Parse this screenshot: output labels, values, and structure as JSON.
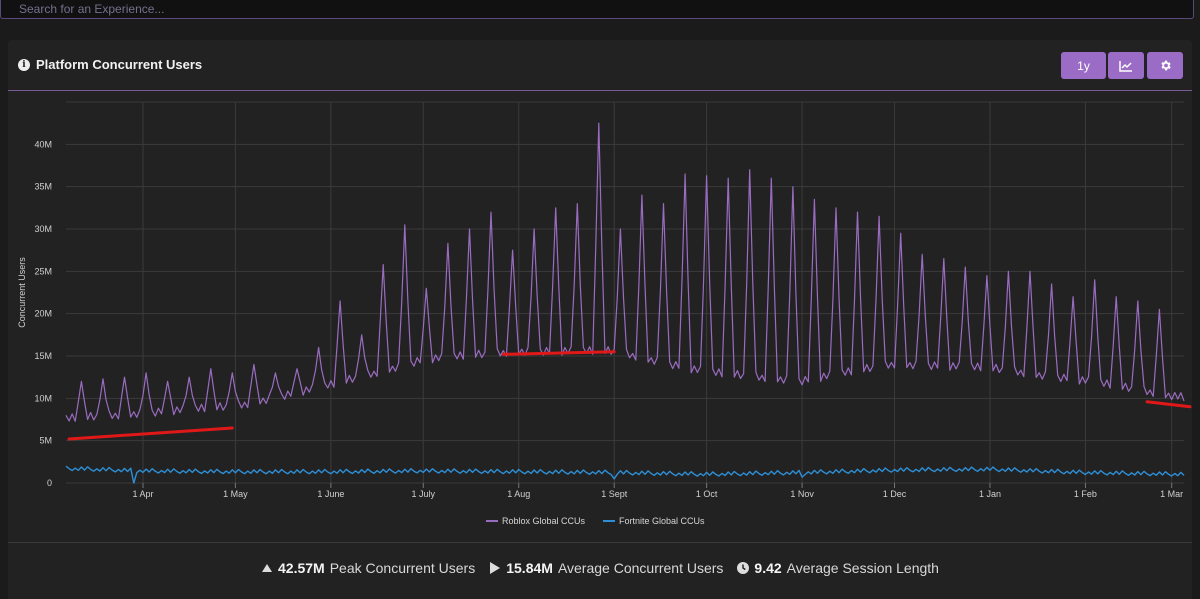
{
  "search": {
    "placeholder": "Search for an Experience..."
  },
  "panel": {
    "title": "Platform Concurrent Users",
    "range_button": "1y",
    "chart_button_icon": "line-chart-icon",
    "settings_button_icon": "gear-icon"
  },
  "colors": {
    "roblox": "#9a6cc0",
    "fortnite": "#2e8fd6",
    "annotation": "#e01818",
    "accent": "#9b6cc6"
  },
  "chart_data": {
    "type": "line",
    "title": "",
    "xlabel": "",
    "ylabel": "Concurrent Users",
    "ylim": [
      0,
      45
    ],
    "y_unit": "M",
    "y_ticks": [
      0,
      5,
      10,
      15,
      20,
      25,
      30,
      35,
      40
    ],
    "y_tick_labels": [
      "0",
      "5M",
      "10M",
      "15M",
      "20M",
      "25M",
      "30M",
      "35M",
      "40M"
    ],
    "x_range": [
      "2022-03-07",
      "2023-03-05"
    ],
    "x_ticks": [
      {
        "date": "2022-04-01",
        "label": "1 Apr"
      },
      {
        "date": "2022-05-01",
        "label": "1 May"
      },
      {
        "date": "2022-06-01",
        "label": "1 June"
      },
      {
        "date": "2022-07-01",
        "label": "1 July"
      },
      {
        "date": "2022-08-01",
        "label": "1 Aug"
      },
      {
        "date": "2022-09-01",
        "label": "1 Sept"
      },
      {
        "date": "2022-10-01",
        "label": "1 Oct"
      },
      {
        "date": "2022-11-01",
        "label": "1 Nov"
      },
      {
        "date": "2022-12-01",
        "label": "1 Dec"
      },
      {
        "date": "2023-01-01",
        "label": "1 Jan"
      },
      {
        "date": "2023-02-01",
        "label": "1 Feb"
      },
      {
        "date": "2023-03-01",
        "label": "1 Mar"
      }
    ],
    "grid": true,
    "legend_position": "bottom-center",
    "series": [
      {
        "name": "Roblox Global CCUs",
        "baseline_points": [
          [
            "2022-03-07",
            7.5
          ],
          [
            "2022-04-01",
            8.2
          ],
          [
            "2022-05-01",
            9.0
          ],
          [
            "2022-06-01",
            11.5
          ],
          [
            "2022-07-01",
            14.5
          ],
          [
            "2022-08-01",
            15.5
          ],
          [
            "2022-09-01",
            15.5
          ],
          [
            "2022-10-01",
            13.0
          ],
          [
            "2022-11-01",
            12.0
          ],
          [
            "2022-12-01",
            14.0
          ],
          [
            "2023-01-01",
            13.5
          ],
          [
            "2023-02-01",
            12.0
          ],
          [
            "2023-03-05",
            10.0
          ]
        ],
        "weekend_peaks": [
          [
            "2022-03-12",
            12.0
          ],
          [
            "2022-03-19",
            12.3
          ],
          [
            "2022-03-26",
            12.5
          ],
          [
            "2022-04-02",
            13.0
          ],
          [
            "2022-04-09",
            12.0
          ],
          [
            "2022-04-16",
            12.5
          ],
          [
            "2022-04-23",
            13.5
          ],
          [
            "2022-04-30",
            13.0
          ],
          [
            "2022-05-07",
            14.0
          ],
          [
            "2022-05-14",
            13.0
          ],
          [
            "2022-05-21",
            13.5
          ],
          [
            "2022-05-28",
            16.0
          ],
          [
            "2022-06-04",
            21.5
          ],
          [
            "2022-06-11",
            17.5
          ],
          [
            "2022-06-18",
            25.8
          ],
          [
            "2022-06-25",
            30.5
          ],
          [
            "2022-07-02",
            23.0
          ],
          [
            "2022-07-09",
            28.3
          ],
          [
            "2022-07-16",
            30.0
          ],
          [
            "2022-07-23",
            32.0
          ],
          [
            "2022-07-30",
            27.5
          ],
          [
            "2022-08-06",
            30.0
          ],
          [
            "2022-08-13",
            32.5
          ],
          [
            "2022-08-20",
            33.0
          ],
          [
            "2022-08-27",
            42.5
          ],
          [
            "2022-09-03",
            30.0
          ],
          [
            "2022-09-10",
            34.0
          ],
          [
            "2022-09-17",
            33.0
          ],
          [
            "2022-09-24",
            36.5
          ],
          [
            "2022-10-01",
            36.3
          ],
          [
            "2022-10-08",
            36.0
          ],
          [
            "2022-10-15",
            37.0
          ],
          [
            "2022-10-22",
            36.0
          ],
          [
            "2022-10-29",
            35.0
          ],
          [
            "2022-11-05",
            33.5
          ],
          [
            "2022-11-12",
            32.5
          ],
          [
            "2022-11-19",
            32.0
          ],
          [
            "2022-11-26",
            31.5
          ],
          [
            "2022-12-03",
            29.5
          ],
          [
            "2022-12-10",
            27.0
          ],
          [
            "2022-12-17",
            26.5
          ],
          [
            "2022-12-24",
            25.5
          ],
          [
            "2022-12-31",
            24.5
          ],
          [
            "2023-01-07",
            25.0
          ],
          [
            "2023-01-14",
            25.0
          ],
          [
            "2023-01-21",
            23.5
          ],
          [
            "2023-01-28",
            22.0
          ],
          [
            "2023-02-04",
            24.0
          ],
          [
            "2023-02-11",
            22.0
          ],
          [
            "2023-02-18",
            21.5
          ],
          [
            "2023-02-25",
            20.5
          ]
        ]
      },
      {
        "name": "Fortnite Global CCUs",
        "points": [
          [
            "2022-03-07",
            1.7
          ],
          [
            "2022-04-01",
            1.4
          ],
          [
            "2022-05-01",
            1.3
          ],
          [
            "2022-06-01",
            1.3
          ],
          [
            "2022-07-01",
            1.4
          ],
          [
            "2022-08-01",
            1.3
          ],
          [
            "2022-09-01",
            1.2
          ],
          [
            "2022-10-01",
            1.0
          ],
          [
            "2022-11-01",
            1.2
          ],
          [
            "2022-12-01",
            1.5
          ],
          [
            "2023-01-01",
            1.6
          ],
          [
            "2023-02-01",
            1.2
          ],
          [
            "2023-03-05",
            1.0
          ]
        ],
        "dips": [
          [
            "2022-03-29",
            0.0
          ],
          [
            "2022-09-01",
            0.5
          ],
          [
            "2022-11-01",
            0.7
          ]
        ]
      }
    ],
    "annotations": [
      {
        "type": "line",
        "from": [
          "2022-03-08",
          5.2
        ],
        "to": [
          "2022-04-30",
          6.5
        ]
      },
      {
        "type": "line",
        "from": [
          "2022-07-27",
          15.2
        ],
        "to": [
          "2022-09-01",
          15.5
        ]
      },
      {
        "type": "line",
        "from": [
          "2023-02-21",
          9.6
        ],
        "to": [
          "2023-03-10",
          9.0
        ]
      }
    ]
  },
  "stats": [
    {
      "icon": "triangle-up-icon",
      "value": "42.57M",
      "label": "Peak Concurrent Users"
    },
    {
      "icon": "play-icon",
      "value": "15.84M",
      "label": "Average Concurrent Users"
    },
    {
      "icon": "clock-icon",
      "value": "9.42",
      "label": "Average Session Length"
    }
  ]
}
